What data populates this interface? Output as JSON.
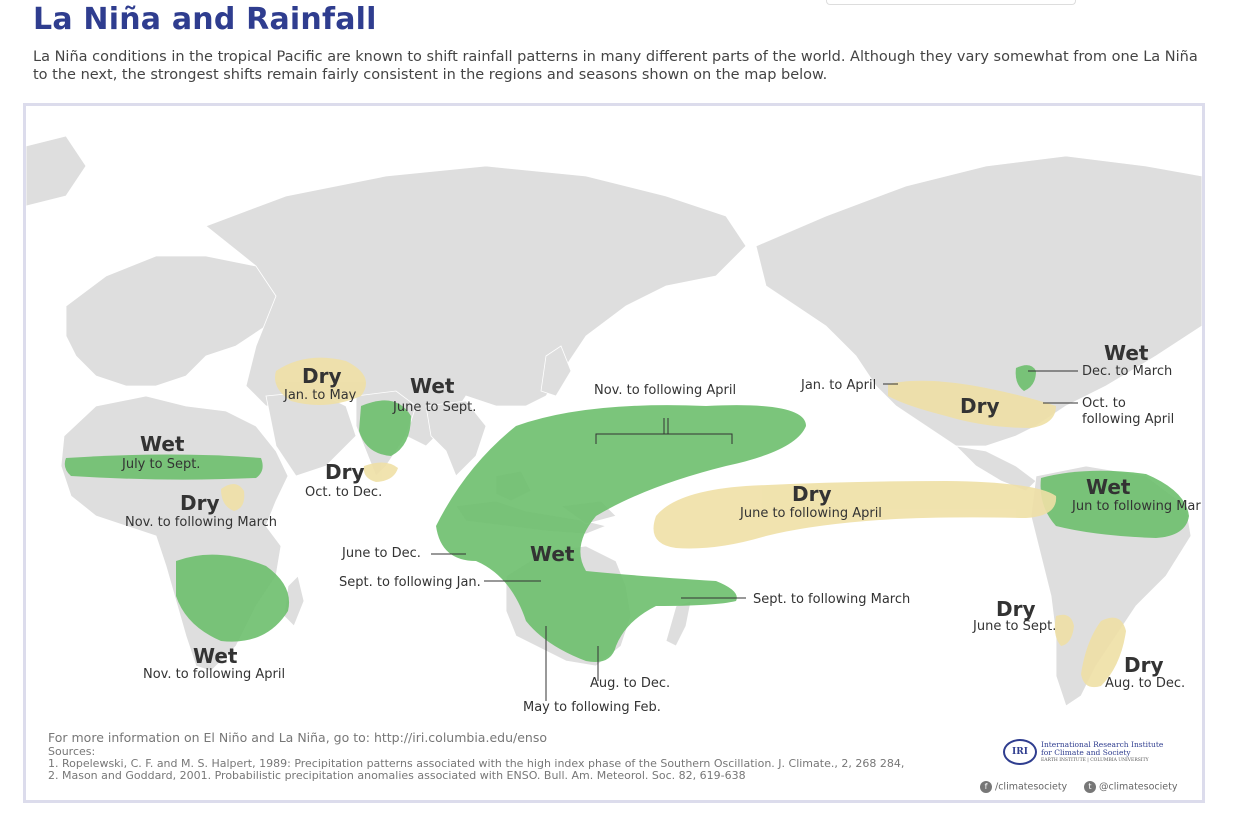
{
  "title": "La Niña and Rainfall",
  "intro": "La Niña conditions in the tropical Pacific are known to shift rainfall patterns in many different parts of the world. Although they vary somewhat from one La Niña to the next, the strongest shifts remain fairly consistent in the regions and seasons shown on the map below.",
  "colors": {
    "wet": "#6dbf6d",
    "dry": "#efe0a6",
    "land": "#dedede",
    "accent": "#2f3d8f"
  },
  "regions": {
    "west_africa": {
      "type": "Wet",
      "season": "July to Sept."
    },
    "east_africa": {
      "type": "Dry",
      "season": "Nov. to following March"
    },
    "southern_africa": {
      "type": "Wet",
      "season": "Nov. to following April"
    },
    "middle_east": {
      "type": "Dry",
      "season": "Jan. to May"
    },
    "india": {
      "type": "Wet",
      "season": "June to Sept."
    },
    "sri_lanka": {
      "type": "Dry",
      "season": "Oct. to Dec."
    },
    "maritime_continent": {
      "type": "Wet",
      "season_pacific": "Nov. to following April",
      "season_indonesia": "June to Dec.",
      "season_north_australia": "Sept. to following Jan.",
      "season_southwest_australia": "May to following Feb.",
      "season_southeast_australia": "Aug. to Dec.",
      "season_new_zealand": "Sept. to following March"
    },
    "central_pacific": {
      "type": "Dry",
      "season": "June to following April"
    },
    "northeast_us": {
      "type": "Wet",
      "season": "Dec. to March"
    },
    "southern_us": {
      "type": "Dry",
      "season_west": "Jan. to April",
      "season_east": "Oct. to following April"
    },
    "northern_south_america": {
      "type": "Wet",
      "season": "Jun to following Mar"
    },
    "chile": {
      "type": "Dry",
      "season": "June to Sept."
    },
    "southeast_south_america": {
      "type": "Dry",
      "season": "Aug. to Dec."
    }
  },
  "footer": {
    "more_info": "For more information on El Niño and La Niña, go to: http://iri.columbia.edu/enso",
    "sources_label": "Sources:",
    "source1": "1. Ropelewski, C. F. and M. S. Halpert, 1989: Precipitation patterns associated with the high index phase of the Southern Oscillation. J. Climate., 2, 268 284,",
    "source2": "2. Mason and Goddard, 2001. Probabilistic precipitation anomalies associated with ENSO. Bull. Am. Meteorol. Soc. 82, 619-638"
  },
  "org": {
    "logo_text": "IRI",
    "name_line1": "International Research Institute",
    "name_line2": "for Climate and Society",
    "name_line3": "EARTH INSTITUTE | COLUMBIA UNIVERSITY",
    "facebook": "/climatesociety",
    "twitter": "@climatesociety",
    "facebook_icon": "facebook-icon",
    "twitter_icon": "twitter-icon"
  }
}
